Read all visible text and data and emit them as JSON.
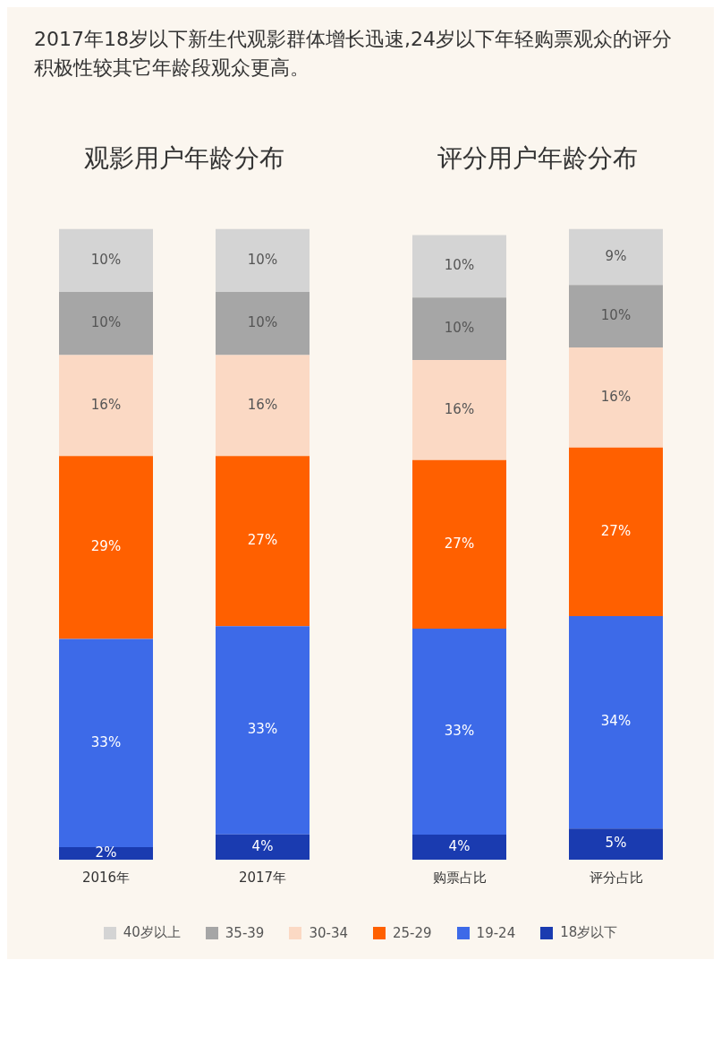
{
  "chart_data": [
    {
      "type": "bar",
      "title": "2017年18岁以下新生代观影群体增长迅速,24岁以下年轻购票观众的评分积极性较其它年龄段观众更高。",
      "subtitle": "观影用户年龄分布",
      "categories": [
        "2016年",
        "2017年"
      ],
      "stacked": true,
      "tick_labels": "x",
      "grid": false,
      "legend": false,
      "series": [
        {
          "color": "#1a3bb0",
          "values": [
            2,
            4
          ],
          "value_labels": [
            "2%",
            "4%"
          ]
        },
        {
          "color": "#3d6ae8",
          "values": [
            33,
            33
          ],
          "value_labels": [
            "33%",
            "33%"
          ]
        },
        {
          "color": "#ff6000",
          "values": [
            29,
            27
          ],
          "value_labels": [
            "29%",
            "27%"
          ]
        },
        {
          "color": "#fbd9c4",
          "values": [
            16,
            16
          ],
          "value_labels": [
            "16%",
            "16%"
          ]
        },
        {
          "color": "#a6a6a6",
          "values": [
            10,
            10
          ],
          "value_labels": [
            "10%",
            "10%"
          ]
        },
        {
          "color": "#d4d4d4",
          "values": [
            10,
            10
          ],
          "value_labels": [
            "10%",
            "10%"
          ]
        }
      ]
    },
    {
      "type": "bar",
      "title": "评分用户年龄分布",
      "categories": [
        "购票占比",
        "评分占比"
      ],
      "stacked": true,
      "tick_labels": "x",
      "grid": false,
      "legend": "bottom",
      "series": [
        {
          "name": "18岁以下",
          "color": "#1a3bb0",
          "values": [
            4,
            5
          ],
          "value_labels": [
            "4%",
            "5%"
          ]
        },
        {
          "name": "19-24",
          "color": "#3d6ae8",
          "values": [
            33,
            34
          ],
          "value_labels": [
            "33%",
            "34%"
          ]
        },
        {
          "name": "25-29",
          "color": "#ff6000",
          "values": [
            27,
            27
          ],
          "value_labels": [
            "27%",
            "27%"
          ]
        },
        {
          "name": "30-34",
          "color": "#fbd9c4",
          "values": [
            16,
            16
          ],
          "value_labels": [
            "16%",
            "16%"
          ]
        },
        {
          "name": "35-39",
          "color": "#a6a6a6",
          "values": [
            10,
            10
          ],
          "value_labels": [
            "10%",
            "10%"
          ]
        },
        {
          "name": "40岁以上",
          "color": "#d4d4d4",
          "values": [
            10,
            9
          ],
          "value_labels": [
            "10%",
            "9%"
          ]
        }
      ]
    }
  ]
}
